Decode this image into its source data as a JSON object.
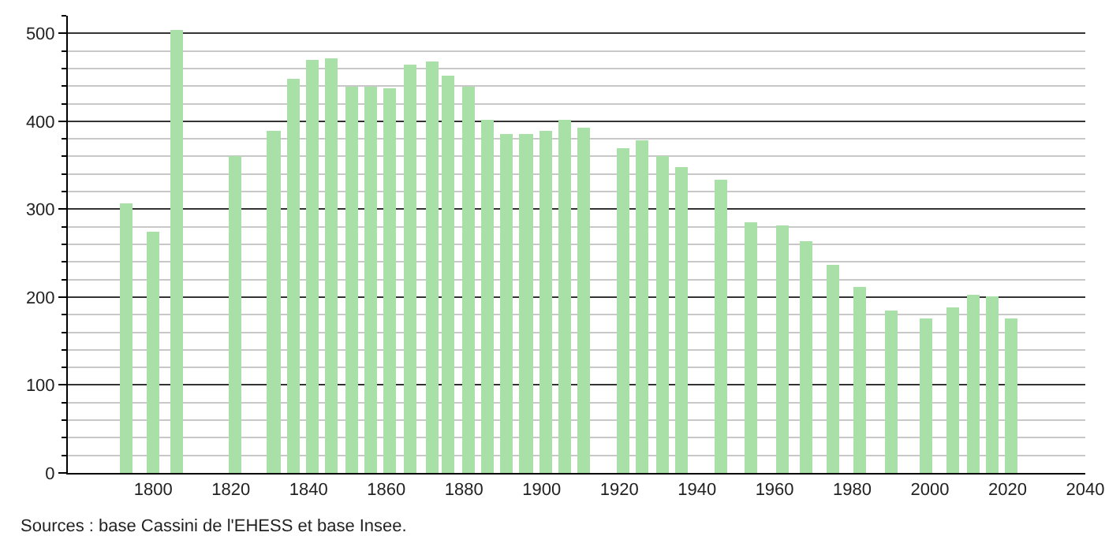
{
  "chart_data": {
    "type": "bar",
    "x": [
      1793,
      1800,
      1806,
      1821,
      1831,
      1836,
      1841,
      1846,
      1851,
      1856,
      1861,
      1866,
      1872,
      1876,
      1881,
      1886,
      1891,
      1896,
      1901,
      1906,
      1911,
      1921,
      1926,
      1931,
      1936,
      1946,
      1954,
      1962,
      1968,
      1975,
      1982,
      1990,
      1999,
      2006,
      2011,
      2016,
      2021
    ],
    "values": [
      306,
      275,
      504,
      360,
      389,
      449,
      470,
      472,
      440,
      440,
      437,
      465,
      468,
      452,
      440,
      401,
      385,
      385,
      389,
      401,
      393,
      369,
      379,
      360,
      348,
      333,
      285,
      281,
      263,
      236,
      211,
      184,
      175,
      189,
      202,
      200,
      175
    ],
    "color": "#a8e0a8",
    "xlim": [
      1778,
      2040
    ],
    "xticks": [
      1800,
      1820,
      1840,
      1860,
      1880,
      1900,
      1920,
      1940,
      1960,
      1980,
      2000,
      2020,
      2040
    ],
    "ylim": [
      0,
      520
    ],
    "yticks": [
      0,
      100,
      200,
      300,
      400,
      500
    ],
    "grid": "y",
    "annotations": [
      "Sources : base Cassini de l'EHESS et base Insee."
    ]
  }
}
